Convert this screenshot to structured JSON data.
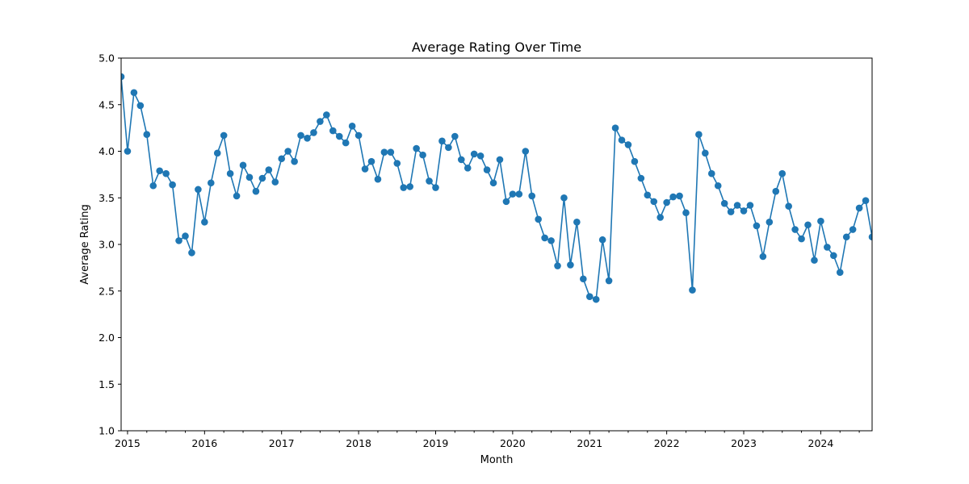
{
  "chart_data": {
    "type": "line",
    "title": "Average Rating Over Time",
    "xlabel": "Month",
    "ylabel": "Average Rating",
    "ylim": [
      1.0,
      5.0
    ],
    "xlim": [
      "2014-12",
      "2024-09"
    ],
    "y_ticks": [
      "1.0",
      "1.5",
      "2.0",
      "2.5",
      "3.0",
      "3.5",
      "4.0",
      "4.5",
      "5.0"
    ],
    "x_ticks": [
      {
        "date": "2015-01",
        "label": "2015"
      },
      {
        "date": "2016-01",
        "label": "2016"
      },
      {
        "date": "2017-01",
        "label": "2017"
      },
      {
        "date": "2018-01",
        "label": "2018"
      },
      {
        "date": "2019-01",
        "label": "2019"
      },
      {
        "date": "2020-01",
        "label": "2020"
      },
      {
        "date": "2021-01",
        "label": "2021"
      },
      {
        "date": "2022-01",
        "label": "2022"
      },
      {
        "date": "2023-01",
        "label": "2023"
      },
      {
        "date": "2024-01",
        "label": "2024"
      }
    ],
    "grid": false,
    "markers": true,
    "series": [
      {
        "color": "#1f77b4",
        "x": [
          "2014-12",
          "2015-01",
          "2015-02",
          "2015-03",
          "2015-04",
          "2015-05",
          "2015-06",
          "2015-07",
          "2015-08",
          "2015-09",
          "2015-10",
          "2015-11",
          "2015-12",
          "2016-01",
          "2016-02",
          "2016-03",
          "2016-04",
          "2016-05",
          "2016-06",
          "2016-07",
          "2016-08",
          "2016-09",
          "2016-10",
          "2016-11",
          "2016-12",
          "2017-01",
          "2017-02",
          "2017-03",
          "2017-04",
          "2017-05",
          "2017-06",
          "2017-07",
          "2017-08",
          "2017-09",
          "2017-10",
          "2017-11",
          "2017-12",
          "2018-01",
          "2018-02",
          "2018-03",
          "2018-04",
          "2018-05",
          "2018-06",
          "2018-07",
          "2018-08",
          "2018-09",
          "2018-10",
          "2018-11",
          "2018-12",
          "2019-01",
          "2019-02",
          "2019-03",
          "2019-04",
          "2019-05",
          "2019-06",
          "2019-07",
          "2019-08",
          "2019-09",
          "2019-10",
          "2019-11",
          "2019-12",
          "2020-01",
          "2020-02",
          "2020-03",
          "2020-04",
          "2020-05",
          "2020-06",
          "2020-07",
          "2020-08",
          "2020-09",
          "2020-10",
          "2020-11",
          "2020-12",
          "2021-01",
          "2021-02",
          "2021-03",
          "2021-04",
          "2021-05",
          "2021-06",
          "2021-07",
          "2021-08",
          "2021-09",
          "2021-10",
          "2021-11",
          "2021-12",
          "2022-01",
          "2022-02",
          "2022-03",
          "2022-04",
          "2022-05",
          "2022-06",
          "2022-07",
          "2022-08",
          "2022-09",
          "2022-10",
          "2022-11",
          "2022-12",
          "2023-01",
          "2023-02",
          "2023-03",
          "2023-04",
          "2023-05",
          "2023-06",
          "2023-07",
          "2023-08",
          "2023-09",
          "2023-10",
          "2023-11",
          "2023-12",
          "2024-01",
          "2024-02",
          "2024-03",
          "2024-04",
          "2024-05",
          "2024-06",
          "2024-07",
          "2024-08",
          "2024-09"
        ],
        "values": [
          4.8,
          4.0,
          4.63,
          4.49,
          4.18,
          3.63,
          3.79,
          3.76,
          3.64,
          3.04,
          3.09,
          2.91,
          3.59,
          3.24,
          3.66,
          3.98,
          4.17,
          3.76,
          3.52,
          3.85,
          3.72,
          3.57,
          3.71,
          3.8,
          3.67,
          3.92,
          4.0,
          3.89,
          4.17,
          4.14,
          4.2,
          4.32,
          4.39,
          4.22,
          4.16,
          4.09,
          4.27,
          4.17,
          3.81,
          3.89,
          3.7,
          3.99,
          3.99,
          3.87,
          3.61,
          3.62,
          4.03,
          3.96,
          3.68,
          3.61,
          4.11,
          4.04,
          4.16,
          3.91,
          3.82,
          3.97,
          3.95,
          3.8,
          3.66,
          3.91,
          3.46,
          3.54,
          3.54,
          4.0,
          3.52,
          3.27,
          3.07,
          3.04,
          2.77,
          3.5,
          2.78,
          3.24,
          2.63,
          2.44,
          2.41,
          3.05,
          2.61,
          4.25,
          4.12,
          4.07,
          3.89,
          3.71,
          3.53,
          3.46,
          3.29,
          3.45,
          3.51,
          3.52,
          3.34,
          2.51,
          4.18,
          3.98,
          3.76,
          3.63,
          3.44,
          3.35,
          3.42,
          3.36,
          3.42,
          3.2,
          2.87,
          3.24,
          3.57,
          3.76,
          3.41,
          3.16,
          3.06,
          3.21,
          2.83,
          3.25,
          2.97,
          2.88,
          2.7,
          3.08,
          3.16,
          3.39,
          3.47,
          3.08
        ]
      }
    ]
  }
}
